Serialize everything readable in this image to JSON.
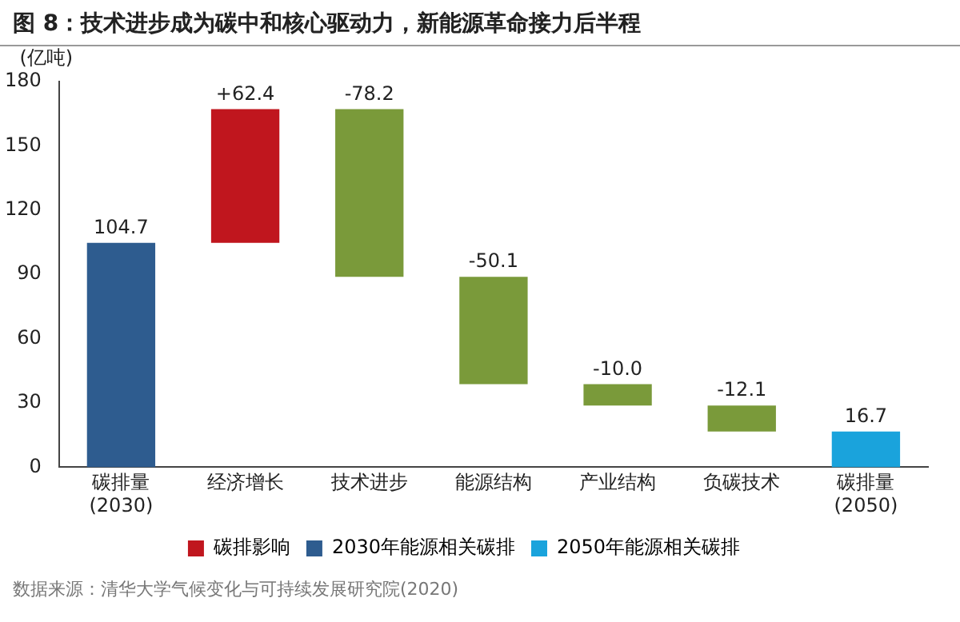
{
  "chart_data": {
    "type": "bar",
    "title": "图 8：技术进步成为碳中和核心驱动力，新能源革命接力后半程",
    "ylabel": "(亿吨)",
    "categories": [
      "碳排量\n(2030)",
      "经济增长",
      "技术进步",
      "能源结构",
      "产业结构",
      "负碳技术",
      "碳排量\n(2050)"
    ],
    "series": [
      {
        "name": "碳排影响",
        "color": "#c0161e",
        "colors": [
          null,
          "#c0161e",
          "#7a9a3a",
          "#7a9a3a",
          "#7a9a3a",
          "#7a9a3a",
          null
        ],
        "values": [
          null,
          62.4,
          -78.2,
          -50.1,
          -10.0,
          -12.1,
          null
        ],
        "base": [
          null,
          104.7,
          167.1,
          88.9,
          38.8,
          28.8,
          null
        ],
        "value_labels": [
          null,
          "+62.4",
          "-78.2",
          "-50.1",
          "-10.0",
          "-12.1",
          null
        ]
      },
      {
        "name": "2030年能源相关碳排",
        "color": "#2e5c8f",
        "values": [
          104.7,
          null,
          null,
          null,
          null,
          null,
          null
        ],
        "base": [
          0,
          null,
          null,
          null,
          null,
          null,
          null
        ],
        "value_labels": [
          "104.7",
          null,
          null,
          null,
          null,
          null,
          null
        ]
      },
      {
        "name": "2050年能源相关碳排",
        "color": "#1aa3dc",
        "values": [
          null,
          null,
          null,
          null,
          null,
          null,
          16.7
        ],
        "base": [
          null,
          null,
          null,
          null,
          null,
          null,
          0
        ],
        "value_labels": [
          null,
          null,
          null,
          null,
          null,
          null,
          "16.7"
        ]
      }
    ],
    "ylim": [
      0,
      180
    ],
    "yticks": [
      0,
      30,
      60,
      90,
      120,
      150,
      180
    ],
    "grid": false,
    "legend": "bottom",
    "annotations": [
      "数据来源：清华大学气候变化与可持续发展研究院(2020)"
    ]
  }
}
